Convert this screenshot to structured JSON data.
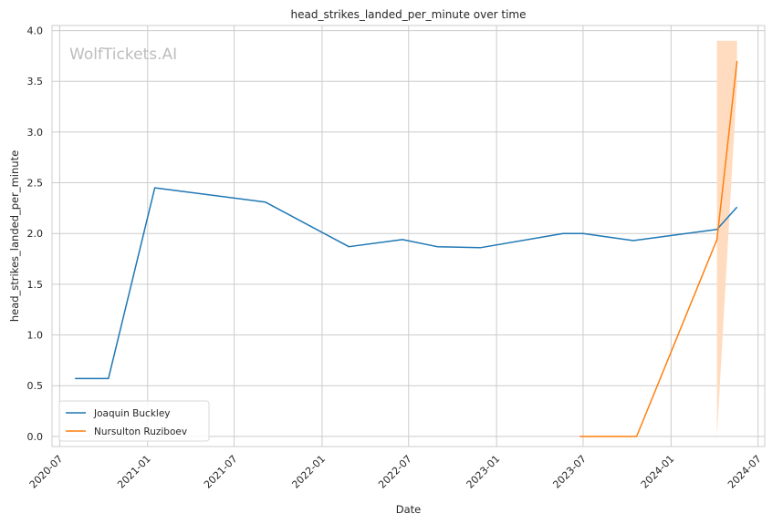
{
  "chart_data": {
    "type": "line",
    "title": "head_strikes_landed_per_minute over time",
    "xlabel": "Date",
    "ylabel": "head_strikes_landed_per_minute",
    "watermark": "WolfTickets.AI",
    "xlim": [
      "2020-06-15",
      "2024-07-15"
    ],
    "ylim": [
      -0.1,
      4.05
    ],
    "x_ticks": [
      "2020-07",
      "2021-01",
      "2021-07",
      "2022-01",
      "2022-07",
      "2023-01",
      "2023-07",
      "2024-01",
      "2024-07"
    ],
    "y_ticks": [
      "0.0",
      "0.5",
      "1.0",
      "1.5",
      "2.0",
      "2.5",
      "3.0",
      "3.5",
      "4.0"
    ],
    "grid": true,
    "legend_position": "lower-left",
    "series": [
      {
        "name": "Joaquin Buckley",
        "color": "#1f77b4",
        "points": [
          {
            "x": "2020-08-02",
            "y": 0.57
          },
          {
            "x": "2020-10-11",
            "y": 0.57
          },
          {
            "x": "2021-01-16",
            "y": 2.45
          },
          {
            "x": "2021-09-04",
            "y": 2.31
          },
          {
            "x": "2022-02-26",
            "y": 1.87
          },
          {
            "x": "2022-06-18",
            "y": 1.94
          },
          {
            "x": "2022-08-30",
            "y": 1.87
          },
          {
            "x": "2022-11-28",
            "y": 1.86
          },
          {
            "x": "2023-05-20",
            "y": 2.0
          },
          {
            "x": "2023-07-01",
            "y": 2.0
          },
          {
            "x": "2023-10-14",
            "y": 1.93
          },
          {
            "x": "2024-04-06",
            "y": 2.04
          },
          {
            "x": "2024-05-18",
            "y": 2.26
          }
        ]
      },
      {
        "name": "Nursulton Ruziboev",
        "color": "#ff7f0e",
        "band_color": "#ffdcbf",
        "points": [
          {
            "x": "2023-06-24",
            "y": 0.0
          },
          {
            "x": "2023-10-21",
            "y": 0.0
          },
          {
            "x": "2024-04-06",
            "y": 1.94
          },
          {
            "x": "2024-05-18",
            "y": 3.7
          }
        ],
        "band": [
          {
            "x": "2024-04-06",
            "lower": 0.0,
            "upper": 3.9
          },
          {
            "x": "2024-05-18",
            "lower": 3.49,
            "upper": 3.9
          }
        ]
      }
    ]
  }
}
